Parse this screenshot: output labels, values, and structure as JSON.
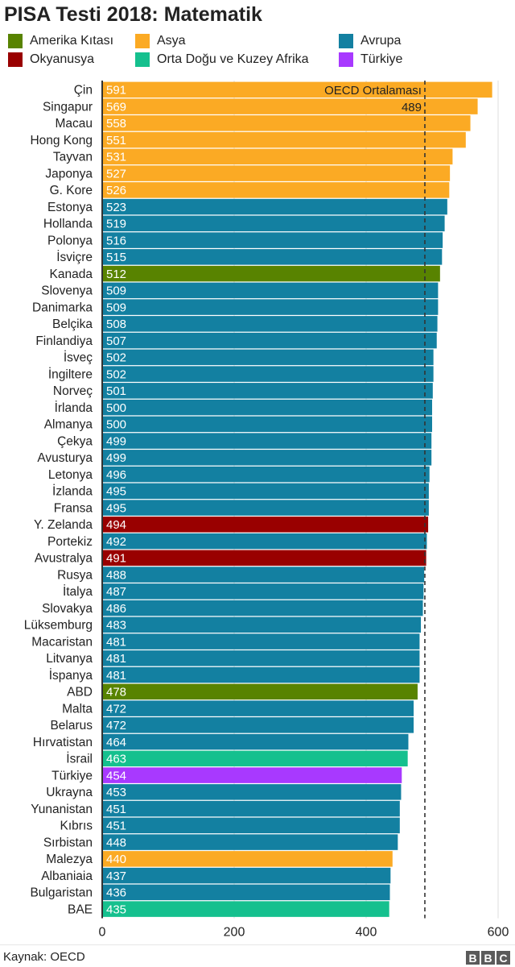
{
  "title": "PISA Testi 2018: Matematik",
  "legend": [
    {
      "label": "Amerika Kıtası",
      "color": "#588300"
    },
    {
      "label": "Asya",
      "color": "#fbaa24"
    },
    {
      "label": "Avrupa",
      "color": "#1380a1"
    },
    {
      "label": "Okyanusya",
      "color": "#990000"
    },
    {
      "label": "Orta Doğu ve Kuzey Afrika",
      "color": "#15c08e"
    },
    {
      "label": "Türkiye",
      "color": "#a839ff"
    }
  ],
  "footer": {
    "source": "Kaynak: OECD",
    "logo": [
      "B",
      "B",
      "C"
    ]
  },
  "chart_data": {
    "type": "bar",
    "orientation": "horizontal",
    "title": "PISA Testi 2018: Matematik",
    "xlim": [
      0,
      600
    ],
    "xticks": [
      "0",
      "200",
      "400",
      "600"
    ],
    "reference_line": {
      "label": "OECD Ortalaması",
      "value": 489,
      "value_label": "489",
      "style": "dashed"
    },
    "categories": [
      "Çin",
      "Singapur",
      "Macau",
      "Hong Kong",
      "Tayvan",
      "Japonya",
      "G. Kore",
      "Estonya",
      "Hollanda",
      "Polonya",
      "İsviçre",
      "Kanada",
      "Slovenya",
      "Danimarka",
      "Belçika",
      "Finlandiya",
      "İsveç",
      "İngiltere",
      "Norveç",
      "İrlanda",
      "Almanya",
      "Çekya",
      "Avusturya",
      "Letonya",
      "İzlanda",
      "Fransa",
      "Y. Zelanda",
      "Portekiz",
      "Avustralya",
      "Rusya",
      "İtalya",
      "Slovakya",
      "Lüksemburg",
      "Macaristan",
      "Litvanya",
      "İspanya",
      "ABD",
      "Malta",
      "Belarus",
      "Hırvatistan",
      "İsrail",
      "Türkiye",
      "Ukrayna",
      "Yunanistan",
      "Kıbrıs",
      "Sırbistan",
      "Malezya",
      "Albaniaia",
      "Bulgaristan",
      "BAE"
    ],
    "values": [
      591,
      569,
      558,
      551,
      531,
      527,
      526,
      523,
      519,
      516,
      515,
      512,
      509,
      509,
      508,
      507,
      502,
      502,
      501,
      500,
      500,
      499,
      499,
      496,
      495,
      495,
      494,
      492,
      491,
      488,
      487,
      486,
      483,
      481,
      481,
      481,
      478,
      472,
      472,
      464,
      463,
      454,
      453,
      451,
      451,
      448,
      440,
      437,
      436,
      435
    ],
    "regions": [
      "Asya",
      "Asya",
      "Asya",
      "Asya",
      "Asya",
      "Asya",
      "Asya",
      "Avrupa",
      "Avrupa",
      "Avrupa",
      "Avrupa",
      "Amerika Kıtası",
      "Avrupa",
      "Avrupa",
      "Avrupa",
      "Avrupa",
      "Avrupa",
      "Avrupa",
      "Avrupa",
      "Avrupa",
      "Avrupa",
      "Avrupa",
      "Avrupa",
      "Avrupa",
      "Avrupa",
      "Avrupa",
      "Okyanusya",
      "Avrupa",
      "Okyanusya",
      "Avrupa",
      "Avrupa",
      "Avrupa",
      "Avrupa",
      "Avrupa",
      "Avrupa",
      "Avrupa",
      "Amerika Kıtası",
      "Avrupa",
      "Avrupa",
      "Avrupa",
      "Orta Doğu ve Kuzey Afrika",
      "Türkiye",
      "Avrupa",
      "Avrupa",
      "Avrupa",
      "Avrupa",
      "Asya",
      "Avrupa",
      "Avrupa",
      "Orta Doğu ve Kuzey Afrika"
    ]
  }
}
